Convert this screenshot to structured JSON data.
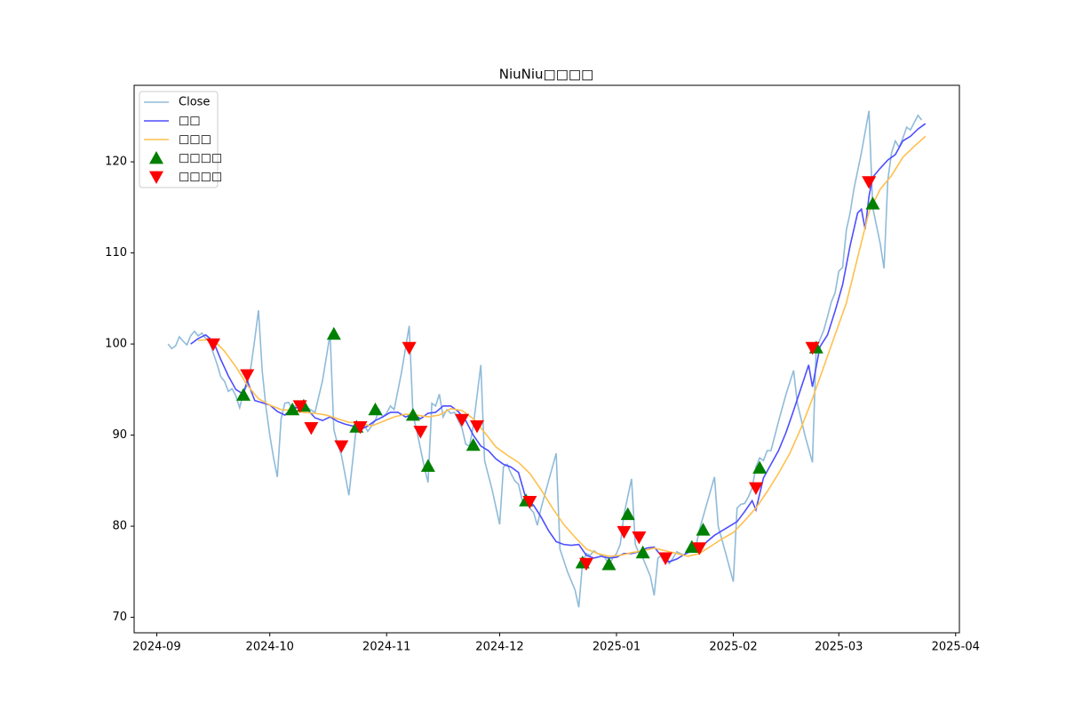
{
  "chart_data": {
    "type": "line",
    "title": "NiuNiu□□□□",
    "grid": false,
    "legend": "upper left",
    "xlim": [
      "2024-08-26",
      "2025-04-02"
    ],
    "xticks": [
      {
        "value": "2024-09-01",
        "label": "2024-09"
      },
      {
        "value": "2024-10-01",
        "label": "2024-10"
      },
      {
        "value": "2024-11-01",
        "label": "2024-11"
      },
      {
        "value": "2024-12-01",
        "label": "2024-12"
      },
      {
        "value": "2025-01-01",
        "label": "2025-01"
      },
      {
        "value": "2025-02-01",
        "label": "2025-02"
      },
      {
        "value": "2025-03-01",
        "label": "2025-03"
      },
      {
        "value": "2025-04-01",
        "label": "2025-04"
      }
    ],
    "ylim": [
      68.3,
      128.4
    ],
    "yticks": [
      70,
      80,
      90,
      100,
      110,
      120
    ],
    "series": [
      {
        "name": "Close",
        "color": "#8fbbd9",
        "x": [
          "2024-09-04",
          "2024-09-05",
          "2024-09-06",
          "2024-09-07",
          "2024-09-08",
          "2024-09-09",
          "2024-09-10",
          "2024-09-11",
          "2024-09-12",
          "2024-09-13",
          "2024-09-14",
          "2024-09-15",
          "2024-09-16",
          "2024-09-17",
          "2024-09-18",
          "2024-09-19",
          "2024-09-20",
          "2024-09-21",
          "2024-09-22",
          "2024-09-23",
          "2024-09-24",
          "2024-09-25",
          "2024-09-26",
          "2024-09-27",
          "2024-09-28",
          "2024-09-29",
          "2024-09-30",
          "2024-10-01",
          "2024-10-02",
          "2024-10-03",
          "2024-10-04",
          "2024-10-05",
          "2024-10-06",
          "2024-10-07",
          "2024-10-08",
          "2024-10-09",
          "2024-10-10",
          "2024-10-11",
          "2024-10-13",
          "2024-10-15",
          "2024-10-17",
          "2024-10-18",
          "2024-10-19",
          "2024-10-20",
          "2024-10-22",
          "2024-10-24",
          "2024-10-25",
          "2024-10-26",
          "2024-10-27",
          "2024-10-28",
          "2024-10-29",
          "2024-10-30",
          "2024-10-31",
          "2024-11-01",
          "2024-11-02",
          "2024-11-03",
          "2024-11-05",
          "2024-11-07",
          "2024-11-08",
          "2024-11-09",
          "2024-11-10",
          "2024-11-11",
          "2024-11-12",
          "2024-11-13",
          "2024-11-14",
          "2024-11-15",
          "2024-11-16",
          "2024-11-17",
          "2024-11-18",
          "2024-11-19",
          "2024-11-20",
          "2024-11-21",
          "2024-11-22",
          "2024-11-23",
          "2024-11-24",
          "2024-11-26",
          "2024-11-27",
          "2024-11-29",
          "2024-12-01",
          "2024-12-02",
          "2024-12-03",
          "2024-12-04",
          "2024-12-05",
          "2024-12-06",
          "2024-12-07",
          "2024-12-08",
          "2024-12-09",
          "2024-12-10",
          "2024-12-11",
          "2024-12-12",
          "2024-12-14",
          "2024-12-16",
          "2024-12-17",
          "2024-12-19",
          "2024-12-21",
          "2024-12-22",
          "2024-12-23",
          "2024-12-24",
          "2024-12-25",
          "2024-12-26",
          "2024-12-27",
          "2024-12-28",
          "2024-12-29",
          "2024-12-30",
          "2024-12-31",
          "2025-01-01",
          "2025-01-02",
          "2025-01-03",
          "2025-01-05",
          "2025-01-06",
          "2025-01-07",
          "2025-01-08",
          "2025-01-10",
          "2025-01-11",
          "2025-01-12",
          "2025-01-13",
          "2025-01-14",
          "2025-01-15",
          "2025-01-16",
          "2025-01-17",
          "2025-01-18",
          "2025-01-19",
          "2025-01-20",
          "2025-01-21",
          "2025-01-22",
          "2025-01-23",
          "2025-01-25",
          "2025-01-27",
          "2025-01-28",
          "2025-01-30",
          "2025-02-01",
          "2025-02-02",
          "2025-02-03",
          "2025-02-04",
          "2025-02-05",
          "2025-02-06",
          "2025-02-07",
          "2025-02-08",
          "2025-02-09",
          "2025-02-10",
          "2025-02-11",
          "2025-02-13",
          "2025-02-15",
          "2025-02-17",
          "2025-02-18",
          "2025-02-20",
          "2025-02-22",
          "2025-02-23",
          "2025-02-24",
          "2025-02-25",
          "2025-02-26",
          "2025-02-27",
          "2025-02-28",
          "2025-03-01",
          "2025-03-02",
          "2025-03-03",
          "2025-03-04",
          "2025-03-05",
          "2025-03-07",
          "2025-03-09",
          "2025-03-10",
          "2025-03-12",
          "2025-03-13",
          "2025-03-14",
          "2025-03-15",
          "2025-03-16",
          "2025-03-17",
          "2025-03-18",
          "2025-03-19",
          "2025-03-20",
          "2025-03-21",
          "2025-03-22",
          "2025-03-23"
        ],
        "values": [
          100.0,
          99.5,
          99.8,
          100.8,
          100.3,
          99.9,
          100.9,
          101.4,
          100.9,
          101.2,
          100.6,
          100.2,
          99.0,
          97.8,
          96.4,
          95.9,
          94.8,
          95.1,
          94.3,
          93.0,
          94.7,
          95.5,
          97.5,
          100.5,
          103.7,
          97.0,
          93.0,
          90.0,
          87.5,
          85.4,
          91.8,
          93.5,
          93.6,
          92.8,
          93.3,
          93.0,
          92.5,
          93.0,
          92.5,
          96.0,
          101.1,
          90.6,
          89.0,
          87.8,
          83.4,
          91.0,
          90.5,
          91.2,
          90.4,
          91.0,
          91.6,
          92.8,
          92.0,
          92.4,
          93.2,
          92.8,
          97.0,
          102.0,
          92.2,
          90.5,
          88.5,
          86.5,
          84.8,
          93.5,
          93.2,
          94.5,
          92.0,
          92.8,
          92.4,
          92.5,
          91.6,
          90.8,
          89.0,
          88.8,
          91.0,
          97.7,
          87.2,
          84.0,
          80.2,
          86.5,
          86.8,
          85.8,
          85.0,
          84.6,
          82.8,
          82.5,
          82.0,
          81.5,
          80.1,
          82.0,
          85.0,
          88.0,
          77.5,
          75.0,
          73.0,
          71.1,
          76.0,
          77.0,
          76.8,
          77.3,
          77.0,
          76.8,
          76.5,
          75.8,
          76.5,
          77.0,
          78.0,
          81.3,
          85.2,
          78.0,
          77.0,
          76.5,
          74.5,
          72.4,
          76.5,
          76.8,
          76.3,
          75.9,
          76.5,
          77.2,
          77.0,
          76.8,
          77.4,
          77.8,
          77.6,
          79.6,
          82.5,
          85.4,
          80.0,
          77.0,
          73.9,
          82.0,
          82.4,
          82.5,
          83.2,
          84.2,
          86.5,
          87.5,
          87.2,
          88.3,
          88.3,
          91.5,
          94.5,
          97.1,
          93.5,
          90.0,
          87.0,
          99.6,
          100.5,
          101.5,
          103.0,
          104.6,
          105.6,
          108.0,
          108.4,
          112.5,
          114.4,
          117.0,
          121.0,
          125.6,
          115.0,
          111.0,
          108.3,
          118.0,
          121.0,
          122.3,
          121.6,
          122.6,
          123.8,
          123.5,
          124.3,
          125.1,
          124.6
        ]
      },
      {
        "name": "□□",
        "color": "#4d4dff",
        "x": [
          "2024-09-10",
          "2024-09-12",
          "2024-09-14",
          "2024-09-16",
          "2024-09-18",
          "2024-09-20",
          "2024-09-22",
          "2024-09-24",
          "2024-09-25",
          "2024-09-27",
          "2024-10-01",
          "2024-10-03",
          "2024-10-05",
          "2024-10-07",
          "2024-10-09",
          "2024-10-11",
          "2024-10-13",
          "2024-10-15",
          "2024-10-17",
          "2024-10-19",
          "2024-10-21",
          "2024-10-23",
          "2024-10-25",
          "2024-10-27",
          "2024-10-29",
          "2024-10-31",
          "2024-11-02",
          "2024-11-04",
          "2024-11-06",
          "2024-11-08",
          "2024-11-10",
          "2024-11-12",
          "2024-11-14",
          "2024-11-16",
          "2024-11-18",
          "2024-11-20",
          "2024-11-22",
          "2024-11-24",
          "2024-11-26",
          "2024-11-28",
          "2024-11-30",
          "2024-12-02",
          "2024-12-04",
          "2024-12-06",
          "2024-12-08",
          "2024-12-10",
          "2024-12-12",
          "2024-12-14",
          "2024-12-16",
          "2024-12-18",
          "2024-12-20",
          "2024-12-22",
          "2024-12-24",
          "2024-12-26",
          "2024-12-28",
          "2024-12-30",
          "2025-01-01",
          "2025-01-03",
          "2025-01-05",
          "2025-01-07",
          "2025-01-09",
          "2025-01-11",
          "2025-01-13",
          "2025-01-15",
          "2025-01-17",
          "2025-01-19",
          "2025-01-21",
          "2025-01-23",
          "2025-01-25",
          "2025-01-27",
          "2025-01-29",
          "2025-01-31",
          "2025-02-02",
          "2025-02-04",
          "2025-02-06",
          "2025-02-07",
          "2025-02-09",
          "2025-02-11",
          "2025-02-13",
          "2025-02-15",
          "2025-02-17",
          "2025-02-19",
          "2025-02-21",
          "2025-02-22",
          "2025-02-24",
          "2025-02-26",
          "2025-02-28",
          "2025-03-02",
          "2025-03-04",
          "2025-03-06",
          "2025-03-07",
          "2025-03-08",
          "2025-03-09",
          "2025-03-10",
          "2025-03-12",
          "2025-03-14",
          "2025-03-16",
          "2025-03-18",
          "2025-03-20",
          "2025-03-22",
          "2025-03-24"
        ],
        "values": [
          100.0,
          100.6,
          101.0,
          100.3,
          98.3,
          96.5,
          95.0,
          94.5,
          96.0,
          93.8,
          93.3,
          92.6,
          92.2,
          93.0,
          93.0,
          92.8,
          91.9,
          91.6,
          92.0,
          91.5,
          91.2,
          91.0,
          90.6,
          91.0,
          91.6,
          92.0,
          92.5,
          92.5,
          92.0,
          92.3,
          91.8,
          92.4,
          92.5,
          93.2,
          93.2,
          92.6,
          91.6,
          90.0,
          88.8,
          88.3,
          87.4,
          86.8,
          86.5,
          85.9,
          83.0,
          82.3,
          81.0,
          79.5,
          78.3,
          78.0,
          77.9,
          78.0,
          76.8,
          76.5,
          76.7,
          76.5,
          76.6,
          77.0,
          77.0,
          77.2,
          77.6,
          77.7,
          76.7,
          76.1,
          76.4,
          76.9,
          77.3,
          77.5,
          78.3,
          79.0,
          79.5,
          80.0,
          80.5,
          81.6,
          82.8,
          81.8,
          85.3,
          86.8,
          88.3,
          90.3,
          92.7,
          95.2,
          97.7,
          95.3,
          99.7,
          101.0,
          103.6,
          106.5,
          110.8,
          114.4,
          114.8,
          112.6,
          116.2,
          118.3,
          119.3,
          120.2,
          120.8,
          122.3,
          122.8,
          123.6,
          124.2
        ]
      },
      {
        "name": "□□□",
        "color": "#ffc04d",
        "x": [
          "2024-09-12",
          "2024-09-16",
          "2024-09-19",
          "2024-09-22",
          "2024-09-25",
          "2024-09-28",
          "2024-10-01",
          "2024-10-04",
          "2024-10-07",
          "2024-10-10",
          "2024-10-13",
          "2024-10-16",
          "2024-10-19",
          "2024-10-22",
          "2024-10-25",
          "2024-10-28",
          "2024-10-31",
          "2024-11-03",
          "2024-11-06",
          "2024-11-09",
          "2024-11-12",
          "2024-11-15",
          "2024-11-18",
          "2024-11-21",
          "2024-11-24",
          "2024-11-27",
          "2024-11-30",
          "2024-12-03",
          "2024-12-06",
          "2024-12-09",
          "2024-12-12",
          "2024-12-15",
          "2024-12-18",
          "2024-12-21",
          "2024-12-24",
          "2024-12-27",
          "2024-12-30",
          "2025-01-02",
          "2025-01-05",
          "2025-01-08",
          "2025-01-11",
          "2025-01-14",
          "2025-01-17",
          "2025-01-20",
          "2025-01-23",
          "2025-01-26",
          "2025-01-29",
          "2025-02-01",
          "2025-02-04",
          "2025-02-07",
          "2025-02-10",
          "2025-02-13",
          "2025-02-16",
          "2025-02-19",
          "2025-02-22",
          "2025-02-25",
          "2025-02-28",
          "2025-03-03",
          "2025-03-06",
          "2025-03-09",
          "2025-03-12",
          "2025-03-15",
          "2025-03-18",
          "2025-03-21",
          "2025-03-24"
        ],
        "values": [
          100.4,
          100.5,
          99.2,
          97.5,
          95.5,
          94.0,
          93.3,
          92.8,
          92.7,
          92.5,
          92.4,
          92.2,
          91.8,
          91.4,
          91.3,
          91.0,
          91.5,
          92.0,
          92.3,
          92.2,
          92.0,
          92.2,
          92.9,
          92.7,
          91.8,
          90.3,
          88.7,
          87.8,
          87.0,
          85.8,
          84.0,
          82.0,
          80.2,
          78.8,
          77.5,
          77.0,
          76.7,
          76.8,
          77.1,
          77.3,
          77.6,
          77.3,
          77.0,
          76.7,
          77.0,
          77.8,
          78.6,
          79.3,
          80.6,
          82.0,
          83.8,
          85.8,
          88.0,
          90.8,
          94.0,
          97.5,
          101.0,
          104.5,
          109.5,
          114.5,
          117.0,
          118.5,
          120.5,
          121.7,
          122.8
        ]
      },
      {
        "name": "□□□□",
        "color": "green",
        "marker": "^",
        "x": [
          "2024-09-24",
          "2024-10-07",
          "2024-10-10",
          "2024-10-18",
          "2024-10-24",
          "2024-10-29",
          "2024-11-08",
          "2024-11-12",
          "2024-11-24",
          "2024-12-08",
          "2024-12-23",
          "2024-12-30",
          "2025-01-04",
          "2025-01-08",
          "2025-01-21",
          "2025-01-24",
          "2025-02-08",
          "2025-02-23",
          "2025-03-10"
        ],
        "values": [
          94.4,
          92.8,
          93.2,
          101.1,
          90.9,
          92.8,
          92.2,
          86.6,
          88.9,
          82.8,
          76.0,
          75.8,
          81.3,
          77.1,
          77.7,
          79.6,
          86.4,
          99.6,
          115.4
        ]
      },
      {
        "name": "□□□□",
        "color": "red",
        "marker": "v",
        "x": [
          "2024-09-16",
          "2024-09-25",
          "2024-10-09",
          "2024-10-12",
          "2024-10-20",
          "2024-10-25",
          "2024-11-07",
          "2024-11-10",
          "2024-11-21",
          "2024-11-25",
          "2024-12-09",
          "2024-12-24",
          "2025-01-03",
          "2025-01-07",
          "2025-01-14",
          "2025-01-23",
          "2025-02-07",
          "2025-02-22",
          "2025-03-09"
        ],
        "values": [
          100.0,
          96.6,
          93.2,
          90.8,
          88.8,
          90.9,
          99.6,
          90.4,
          91.7,
          91.0,
          82.7,
          75.9,
          79.4,
          78.8,
          76.5,
          77.6,
          84.2,
          99.6,
          117.8
        ]
      }
    ]
  }
}
